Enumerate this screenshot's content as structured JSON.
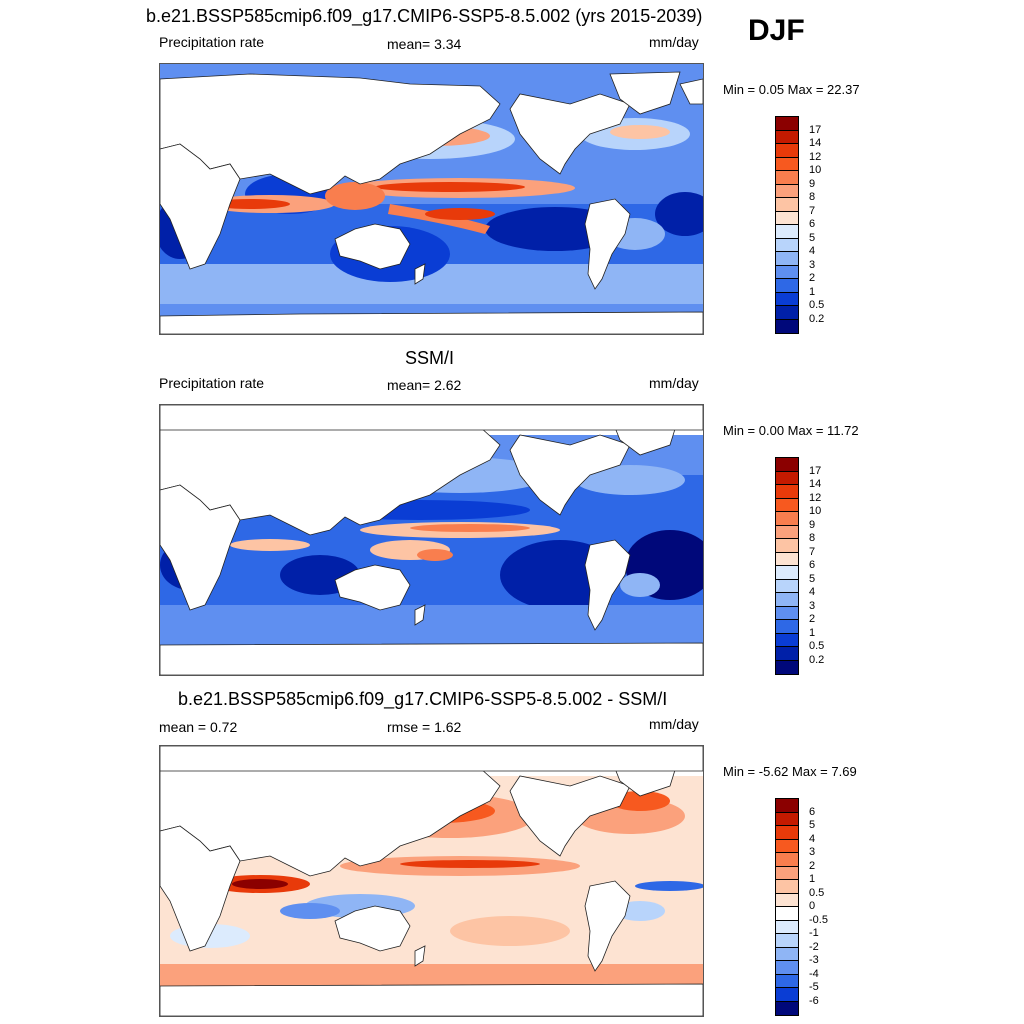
{
  "season": "DJF",
  "panels": [
    {
      "title": "b.e21.BSSP585cmip6.f09_g17.CMIP6-SSP5-8.5.002 (yrs 2015-2039)",
      "left_label": "Precipitation rate",
      "center_label": "mean=   3.34",
      "units": "mm/day",
      "minmax": "Min =   0.05 Max =  22.37",
      "colorbar_labels": [
        "17",
        "14",
        "12",
        "10",
        "9",
        "8",
        "7",
        "6",
        "5",
        "4",
        "3",
        "2",
        "1",
        "0.5",
        "0.2"
      ],
      "colorbar_colors": [
        "#8b0000",
        "#c41a00",
        "#e83a0a",
        "#f7591f",
        "#f97e4e",
        "#fba17c",
        "#fdc4a4",
        "#fde3d2",
        "#dcebfd",
        "#b8d4fb",
        "#8fb5f5",
        "#5f8ff0",
        "#2e68e6",
        "#0a3dd4",
        "#0020a8",
        "#00087a"
      ]
    },
    {
      "title": "SSM/I",
      "left_label": "Precipitation rate",
      "center_label": "mean=   2.62",
      "units": "mm/day",
      "minmax": "Min =   0.00 Max =  11.72",
      "colorbar_labels": [
        "17",
        "14",
        "12",
        "10",
        "9",
        "8",
        "7",
        "6",
        "5",
        "4",
        "3",
        "2",
        "1",
        "0.5",
        "0.2"
      ],
      "colorbar_colors": [
        "#8b0000",
        "#c41a00",
        "#e83a0a",
        "#f7591f",
        "#f97e4e",
        "#fba17c",
        "#fdc4a4",
        "#fde3d2",
        "#dcebfd",
        "#b8d4fb",
        "#8fb5f5",
        "#5f8ff0",
        "#2e68e6",
        "#0a3dd4",
        "#0020a8",
        "#00087a"
      ]
    },
    {
      "title": "b.e21.BSSP585cmip6.f09_g17.CMIP6-SSP5-8.5.002 - SSM/I",
      "left_label": "mean =   0.72",
      "center_label": "rmse =   1.62",
      "units": "mm/day",
      "minmax": "Min =  -5.62 Max =   7.69",
      "colorbar_labels": [
        "6",
        "5",
        "4",
        "3",
        "2",
        "1",
        "0.5",
        "0",
        "-0.5",
        "-1",
        "-2",
        "-3",
        "-4",
        "-5",
        "-6"
      ],
      "colorbar_colors": [
        "#8b0000",
        "#c41a00",
        "#e83a0a",
        "#f7591f",
        "#f97e4e",
        "#fba17c",
        "#fdc4a4",
        "#fde3d2",
        "#ffffff",
        "#dcebfd",
        "#b8d4fb",
        "#8fb5f5",
        "#5f8ff0",
        "#2e68e6",
        "#0a3dd4",
        "#00087a"
      ]
    }
  ]
}
